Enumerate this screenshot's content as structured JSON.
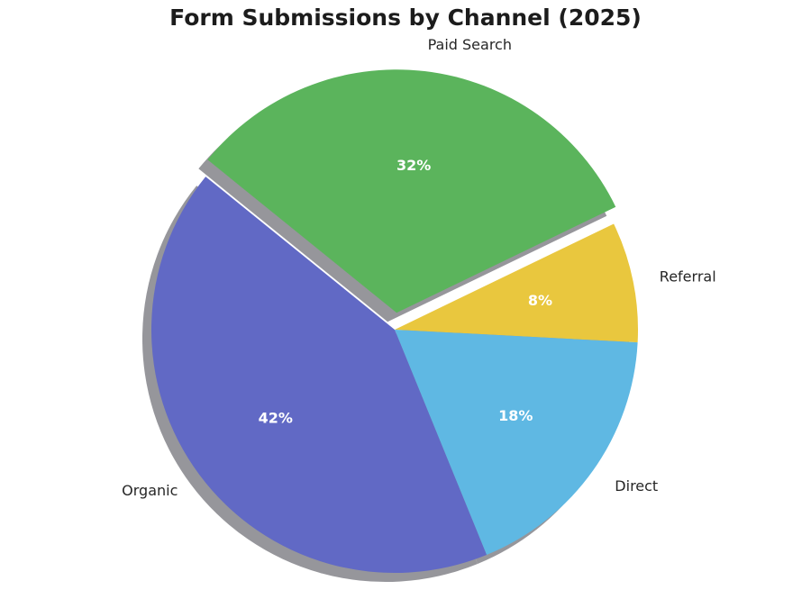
{
  "title": "Form Submissions by Channel (2025)",
  "chart_data": {
    "type": "pie",
    "title": "Form Submissions by Channel (2025)",
    "categories": [
      "Paid Search",
      "Referral",
      "Direct",
      "Organic"
    ],
    "values": [
      32,
      8,
      18,
      42
    ],
    "pct_labels": [
      "32%",
      "8%",
      "18%",
      "42%"
    ],
    "colors": [
      "#5bb45c",
      "#e9c73e",
      "#5fb8e3",
      "#6169c5"
    ],
    "explode": [
      0.07,
      0,
      0,
      0
    ],
    "start_angle_deg": 141,
    "direction": "clockwise",
    "shadow": true,
    "legend_position": "none",
    "style": {
      "title_color": "#1c1c1c",
      "label_color": "#262626",
      "pct_text_color": "#ffffff",
      "shadow_color": "#96969b",
      "background": "#ffffff"
    }
  }
}
